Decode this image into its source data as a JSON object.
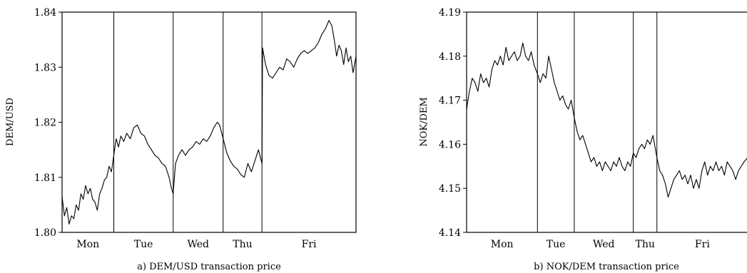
{
  "chart_data": [
    {
      "type": "line",
      "title": "",
      "caption": "a) DEM/USD transaction price",
      "xlabel": "",
      "ylabel": "DEM/USD",
      "ylim": [
        1.8,
        1.84
      ],
      "yticks": [
        "1.80",
        "1.81",
        "1.82",
        "1.83",
        "1.84"
      ],
      "days": [
        "Mon",
        "Tue",
        "Wed",
        "Thu",
        "Fri"
      ],
      "day_boundaries": [
        0,
        0.176,
        0.378,
        0.548,
        0.68,
        1.0
      ],
      "grid": false,
      "series": [
        {
          "values": [
            [
              0.0,
              1.8065
            ],
            [
              0.008,
              1.803
            ],
            [
              0.016,
              1.8045
            ],
            [
              0.024,
              1.8015
            ],
            [
              0.032,
              1.803
            ],
            [
              0.04,
              1.8025
            ],
            [
              0.048,
              1.805
            ],
            [
              0.056,
              1.804
            ],
            [
              0.064,
              1.807
            ],
            [
              0.072,
              1.806
            ],
            [
              0.08,
              1.8085
            ],
            [
              0.088,
              1.807
            ],
            [
              0.096,
              1.808
            ],
            [
              0.104,
              1.806
            ],
            [
              0.112,
              1.8055
            ],
            [
              0.12,
              1.804
            ],
            [
              0.128,
              1.807
            ],
            [
              0.136,
              1.808
            ],
            [
              0.144,
              1.8095
            ],
            [
              0.152,
              1.81
            ],
            [
              0.16,
              1.812
            ],
            [
              0.168,
              1.811
            ],
            [
              0.176,
              1.814
            ],
            [
              0.184,
              1.817
            ],
            [
              0.192,
              1.8155
            ],
            [
              0.2,
              1.8175
            ],
            [
              0.21,
              1.8165
            ],
            [
              0.22,
              1.818
            ],
            [
              0.232,
              1.817
            ],
            [
              0.244,
              1.819
            ],
            [
              0.256,
              1.8195
            ],
            [
              0.268,
              1.818
            ],
            [
              0.28,
              1.8175
            ],
            [
              0.292,
              1.816
            ],
            [
              0.304,
              1.815
            ],
            [
              0.316,
              1.814
            ],
            [
              0.328,
              1.8135
            ],
            [
              0.34,
              1.8125
            ],
            [
              0.352,
              1.812
            ],
            [
              0.364,
              1.81
            ],
            [
              0.372,
              1.808
            ],
            [
              0.378,
              1.807
            ],
            [
              0.386,
              1.8125
            ],
            [
              0.396,
              1.814
            ],
            [
              0.408,
              1.815
            ],
            [
              0.42,
              1.814
            ],
            [
              0.432,
              1.815
            ],
            [
              0.444,
              1.8155
            ],
            [
              0.456,
              1.8165
            ],
            [
              0.468,
              1.816
            ],
            [
              0.48,
              1.817
            ],
            [
              0.492,
              1.8165
            ],
            [
              0.504,
              1.8175
            ],
            [
              0.516,
              1.819
            ],
            [
              0.528,
              1.82
            ],
            [
              0.536,
              1.8195
            ],
            [
              0.548,
              1.817
            ],
            [
              0.56,
              1.8145
            ],
            [
              0.572,
              1.813
            ],
            [
              0.584,
              1.812
            ],
            [
              0.596,
              1.8115
            ],
            [
              0.608,
              1.8105
            ],
            [
              0.62,
              1.81
            ],
            [
              0.632,
              1.8125
            ],
            [
              0.644,
              1.811
            ],
            [
              0.656,
              1.813
            ],
            [
              0.668,
              1.815
            ],
            [
              0.68,
              1.8125
            ],
            [
              0.682,
              1.8335
            ],
            [
              0.692,
              1.8305
            ],
            [
              0.704,
              1.8285
            ],
            [
              0.716,
              1.828
            ],
            [
              0.728,
              1.829
            ],
            [
              0.74,
              1.83
            ],
            [
              0.752,
              1.8295
            ],
            [
              0.764,
              1.8315
            ],
            [
              0.776,
              1.831
            ],
            [
              0.788,
              1.83
            ],
            [
              0.8,
              1.8315
            ],
            [
              0.812,
              1.8325
            ],
            [
              0.824,
              1.833
            ],
            [
              0.836,
              1.8325
            ],
            [
              0.848,
              1.833
            ],
            [
              0.86,
              1.8335
            ],
            [
              0.872,
              1.8345
            ],
            [
              0.884,
              1.836
            ],
            [
              0.896,
              1.837
            ],
            [
              0.908,
              1.8385
            ],
            [
              0.918,
              1.8375
            ],
            [
              0.926,
              1.835
            ],
            [
              0.934,
              1.832
            ],
            [
              0.942,
              1.834
            ],
            [
              0.95,
              1.833
            ],
            [
              0.958,
              1.8305
            ],
            [
              0.966,
              1.8335
            ],
            [
              0.974,
              1.831
            ],
            [
              0.982,
              1.832
            ],
            [
              0.99,
              1.829
            ],
            [
              1.0,
              1.832
            ]
          ]
        }
      ]
    },
    {
      "type": "line",
      "title": "",
      "caption": "b) NOK/DEM transaction price",
      "xlabel": "",
      "ylabel": "NOK/DEM",
      "ylim": [
        4.14,
        4.19
      ],
      "yticks": [
        "4.14",
        "4.15",
        "4.16",
        "4.17",
        "4.18",
        "4.19"
      ],
      "days": [
        "Mon",
        "Tue",
        "Wed",
        "Thu",
        "Fri"
      ],
      "day_boundaries": [
        0,
        0.252,
        0.383,
        0.593,
        0.677,
        1.0
      ],
      "grid": false,
      "series": [
        {
          "values": [
            [
              0.0,
              4.168
            ],
            [
              0.01,
              4.172
            ],
            [
              0.02,
              4.175
            ],
            [
              0.03,
              4.174
            ],
            [
              0.04,
              4.172
            ],
            [
              0.05,
              4.176
            ],
            [
              0.06,
              4.174
            ],
            [
              0.07,
              4.175
            ],
            [
              0.08,
              4.173
            ],
            [
              0.09,
              4.177
            ],
            [
              0.1,
              4.179
            ],
            [
              0.11,
              4.178
            ],
            [
              0.12,
              4.18
            ],
            [
              0.13,
              4.178
            ],
            [
              0.14,
              4.182
            ],
            [
              0.15,
              4.179
            ],
            [
              0.16,
              4.18
            ],
            [
              0.17,
              4.181
            ],
            [
              0.18,
              4.179
            ],
            [
              0.19,
              4.18
            ],
            [
              0.2,
              4.183
            ],
            [
              0.21,
              4.18
            ],
            [
              0.22,
              4.179
            ],
            [
              0.23,
              4.181
            ],
            [
              0.24,
              4.178
            ],
            [
              0.252,
              4.176
            ],
            [
              0.262,
              4.174
            ],
            [
              0.272,
              4.176
            ],
            [
              0.282,
              4.175
            ],
            [
              0.292,
              4.18
            ],
            [
              0.302,
              4.177
            ],
            [
              0.312,
              4.174
            ],
            [
              0.322,
              4.172
            ],
            [
              0.332,
              4.17
            ],
            [
              0.342,
              4.171
            ],
            [
              0.352,
              4.169
            ],
            [
              0.362,
              4.168
            ],
            [
              0.372,
              4.17
            ],
            [
              0.383,
              4.166
            ],
            [
              0.393,
              4.163
            ],
            [
              0.403,
              4.161
            ],
            [
              0.413,
              4.162
            ],
            [
              0.423,
              4.16
            ],
            [
              0.433,
              4.158
            ],
            [
              0.443,
              4.156
            ],
            [
              0.453,
              4.157
            ],
            [
              0.463,
              4.155
            ],
            [
              0.473,
              4.156
            ],
            [
              0.483,
              4.154
            ],
            [
              0.493,
              4.156
            ],
            [
              0.503,
              4.155
            ],
            [
              0.513,
              4.154
            ],
            [
              0.523,
              4.156
            ],
            [
              0.533,
              4.155
            ],
            [
              0.543,
              4.157
            ],
            [
              0.553,
              4.155
            ],
            [
              0.563,
              4.154
            ],
            [
              0.573,
              4.156
            ],
            [
              0.583,
              4.155
            ],
            [
              0.593,
              4.158
            ],
            [
              0.603,
              4.157
            ],
            [
              0.613,
              4.159
            ],
            [
              0.623,
              4.16
            ],
            [
              0.633,
              4.159
            ],
            [
              0.643,
              4.161
            ],
            [
              0.653,
              4.16
            ],
            [
              0.663,
              4.162
            ],
            [
              0.677,
              4.157
            ],
            [
              0.687,
              4.154
            ],
            [
              0.697,
              4.153
            ],
            [
              0.707,
              4.151
            ],
            [
              0.717,
              4.148
            ],
            [
              0.727,
              4.15
            ],
            [
              0.737,
              4.152
            ],
            [
              0.747,
              4.153
            ],
            [
              0.757,
              4.154
            ],
            [
              0.767,
              4.152
            ],
            [
              0.777,
              4.153
            ],
            [
              0.787,
              4.151
            ],
            [
              0.797,
              4.153
            ],
            [
              0.807,
              4.15
            ],
            [
              0.817,
              4.152
            ],
            [
              0.827,
              4.15
            ],
            [
              0.837,
              4.154
            ],
            [
              0.847,
              4.156
            ],
            [
              0.857,
              4.153
            ],
            [
              0.867,
              4.155
            ],
            [
              0.877,
              4.154
            ],
            [
              0.887,
              4.156
            ],
            [
              0.897,
              4.154
            ],
            [
              0.907,
              4.155
            ],
            [
              0.917,
              4.153
            ],
            [
              0.927,
              4.156
            ],
            [
              0.937,
              4.155
            ],
            [
              0.947,
              4.154
            ],
            [
              0.957,
              4.152
            ],
            [
              0.967,
              4.154
            ],
            [
              0.977,
              4.155
            ],
            [
              0.987,
              4.156
            ],
            [
              1.0,
              4.157
            ]
          ]
        }
      ]
    }
  ]
}
